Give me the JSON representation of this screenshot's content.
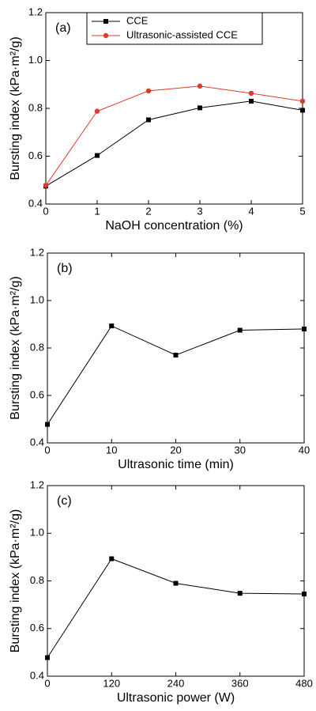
{
  "chart_data": [
    {
      "type": "line",
      "annotation": "(a)",
      "xlabel": "NaOH concentration (%)",
      "ylabel": "Bursting index (kPa·m²/g)",
      "x": [
        0,
        1,
        2,
        3,
        4,
        5
      ],
      "series": [
        {
          "name": "CCE",
          "color": "#000000",
          "marker": "square",
          "values": [
            0.475,
            0.603,
            0.752,
            0.802,
            0.83,
            0.792
          ]
        },
        {
          "name": "Ultrasonic-assisted CCE",
          "color": "#e03a2a",
          "marker": "circle",
          "values": [
            0.478,
            0.788,
            0.873,
            0.893,
            0.863,
            0.83
          ]
        }
      ],
      "xlim": [
        0,
        5
      ],
      "xticks": [
        0,
        1,
        2,
        3,
        4,
        5
      ],
      "ylim": [
        0.4,
        1.2
      ],
      "yticks": [
        0.4,
        0.6,
        0.8,
        {
          "value": 1,
          "label": "1.0"
        },
        1.2
      ],
      "legend": "upper center"
    },
    {
      "type": "line",
      "annotation": "(b)",
      "xlabel": "Ultrasonic time (min)",
      "ylabel": "Bursting index (kPa·m²/g)",
      "x": [
        0,
        10,
        20,
        30,
        40
      ],
      "series": [
        {
          "color": "#000000",
          "marker": "square",
          "values": [
            0.478,
            0.893,
            0.77,
            0.875,
            0.88
          ]
        }
      ],
      "xlim": [
        0,
        40
      ],
      "xticks": [
        0,
        10,
        20,
        30,
        40
      ],
      "ylim": [
        0.4,
        1.2
      ],
      "yticks": [
        0.4,
        0.6,
        0.8,
        {
          "value": 1,
          "label": "1.0"
        },
        1.2
      ]
    },
    {
      "type": "line",
      "annotation": "(c)",
      "xlabel": "Ultrasonic power (W)",
      "ylabel": "Bursting index (kPa·m²/g)",
      "x": [
        0,
        120,
        240,
        360,
        480
      ],
      "series": [
        {
          "color": "#000000",
          "marker": "square",
          "values": [
            0.478,
            0.893,
            0.79,
            0.748,
            0.745
          ]
        }
      ],
      "xlim": [
        0,
        480
      ],
      "xticks": [
        0,
        120,
        240,
        360,
        480
      ],
      "ylim": [
        0.4,
        1.2
      ],
      "yticks": [
        0.4,
        0.6,
        0.8,
        {
          "value": 1,
          "label": "1.0"
        },
        1.2
      ]
    }
  ]
}
